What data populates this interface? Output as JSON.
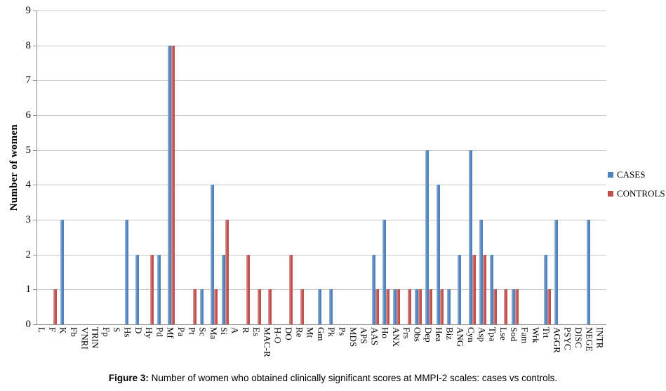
{
  "figure": {
    "caption_prefix": "Figure 3:",
    "caption_text": " Number of women who obtained clinically significant scores at MMPI-2 scales: cases vs controls."
  },
  "colors": {
    "cases": "#4F81BD",
    "controls": "#C0504D",
    "gridline": "#C6C6C6",
    "axis": "#8F8F8F",
    "background": "#FFFFFF"
  },
  "chart_data": {
    "type": "bar",
    "title": "",
    "xlabel": "",
    "ylabel": "Number of women",
    "ylim": [
      0,
      9
    ],
    "yticks": [
      0,
      1,
      2,
      3,
      4,
      5,
      6,
      7,
      8,
      9
    ],
    "grid": true,
    "legend_position": "right",
    "categories": [
      "L",
      "F",
      "K",
      "Fb",
      "VNRI",
      "TRIN",
      "Fp",
      "S",
      "Hs",
      "D",
      "Hy",
      "Pd",
      "Mf",
      "Pa",
      "Pt",
      "Sc",
      "Ma",
      "Si",
      "A",
      "R",
      "Es",
      "MAC-R",
      "H-O",
      "DO",
      "Re",
      "Mt",
      "Gm",
      "Pk",
      "Ps",
      "MDS",
      "APS",
      "AAS",
      "Ho",
      "ANX",
      "Frs",
      "Obs",
      "Dep",
      "Hea",
      "Biz",
      "ANG",
      "Cyn",
      "Asp",
      "Tpa",
      "Lse",
      "Sod",
      "Fam",
      "Wrk",
      "Trt",
      "AGGR",
      "PSYC",
      "DISC",
      "NEGE",
      "INTR"
    ],
    "series": [
      {
        "name": "CASES",
        "color": "#4F81BD",
        "values": [
          0,
          0,
          3,
          0,
          0,
          0,
          0,
          0,
          3,
          2,
          0,
          2,
          8,
          0,
          0,
          1,
          4,
          2,
          0,
          0,
          0,
          0,
          0,
          0,
          0,
          0,
          1,
          1,
          0,
          0,
          0,
          2,
          3,
          1,
          0,
          1,
          5,
          4,
          1,
          2,
          5,
          3,
          2,
          0,
          1,
          0,
          0,
          2,
          3,
          0,
          0,
          3,
          0
        ]
      },
      {
        "name": "CONTROLS",
        "color": "#C0504D",
        "values": [
          0,
          1,
          0,
          0,
          0,
          0,
          0,
          0,
          0,
          0,
          2,
          0,
          8,
          0,
          1,
          0,
          1,
          3,
          0,
          2,
          1,
          1,
          0,
          2,
          1,
          0,
          0,
          0,
          0,
          0,
          0,
          1,
          1,
          1,
          1,
          1,
          1,
          1,
          0,
          0,
          2,
          2,
          1,
          1,
          1,
          0,
          0,
          1,
          0,
          0,
          0,
          0,
          0
        ]
      }
    ]
  }
}
